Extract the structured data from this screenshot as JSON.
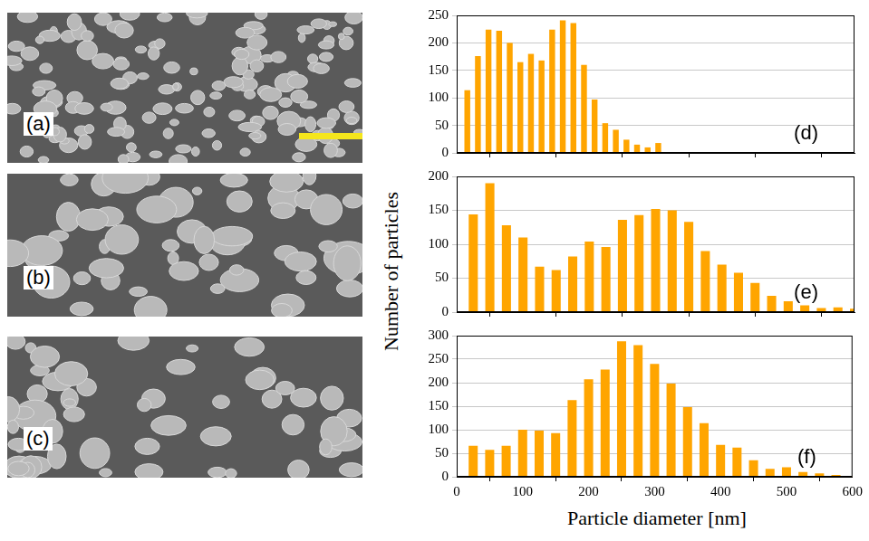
{
  "panels": [
    {
      "label": "(a)"
    },
    {
      "label": "(b)"
    },
    {
      "label": "(c)"
    }
  ],
  "shared_axes": {
    "xlabel": "Particle diameter [nm]",
    "ylabel": "Number of particles"
  },
  "chart_data": [
    {
      "type": "bar",
      "annotation": "(d)",
      "x": [
        16,
        32,
        48,
        64,
        80,
        96,
        112,
        128,
        144,
        160,
        176,
        192,
        208,
        224,
        240,
        256,
        272,
        288,
        304
      ],
      "values": [
        114,
        176,
        224,
        222,
        200,
        165,
        180,
        168,
        224,
        241,
        236,
        160,
        97,
        54,
        42,
        24,
        15,
        10,
        18
      ],
      "color": "#ffa500",
      "xlim": [
        0,
        600
      ],
      "xticks": [
        0,
        100,
        200,
        300,
        400,
        500,
        600
      ],
      "ylim": [
        0,
        250
      ],
      "yticks": [
        0,
        50,
        100,
        150,
        200,
        250
      ],
      "grid": "y",
      "tick_labels": "y"
    },
    {
      "type": "bar",
      "annotation": "(e)",
      "x": [
        25,
        50,
        75,
        100,
        125,
        150,
        175,
        200,
        225,
        250,
        275,
        300,
        325,
        350,
        375,
        400,
        425,
        450,
        475,
        500,
        525,
        550,
        575,
        600
      ],
      "values": [
        144,
        190,
        128,
        110,
        67,
        62,
        82,
        104,
        96,
        136,
        143,
        152,
        150,
        133,
        90,
        70,
        58,
        43,
        24,
        16,
        10,
        6,
        7,
        5
      ],
      "color": "#ffa500",
      "xlim": [
        0,
        600
      ],
      "xticks": [
        0,
        100,
        200,
        300,
        400,
        500,
        600
      ],
      "ylim": [
        0,
        200
      ],
      "yticks": [
        0,
        50,
        100,
        150,
        200
      ],
      "grid": "y",
      "tick_labels": "y"
    },
    {
      "type": "bar",
      "annotation": "(f)",
      "x": [
        25,
        50,
        75,
        100,
        125,
        150,
        175,
        200,
        225,
        250,
        275,
        300,
        325,
        350,
        375,
        400,
        425,
        450,
        475,
        500,
        525,
        550,
        575,
        600
      ],
      "values": [
        66,
        57,
        66,
        100,
        98,
        93,
        163,
        207,
        228,
        288,
        280,
        240,
        198,
        148,
        114,
        68,
        62,
        35,
        17,
        20,
        10,
        7,
        4,
        2
      ],
      "color": "#ffa500",
      "xlim": [
        0,
        600
      ],
      "xticks": [
        0,
        100,
        200,
        300,
        400,
        500,
        600
      ],
      "ylim": [
        0,
        300
      ],
      "yticks": [
        0,
        50,
        100,
        150,
        200,
        250,
        300
      ],
      "grid": "y",
      "tick_labels": true
    }
  ]
}
